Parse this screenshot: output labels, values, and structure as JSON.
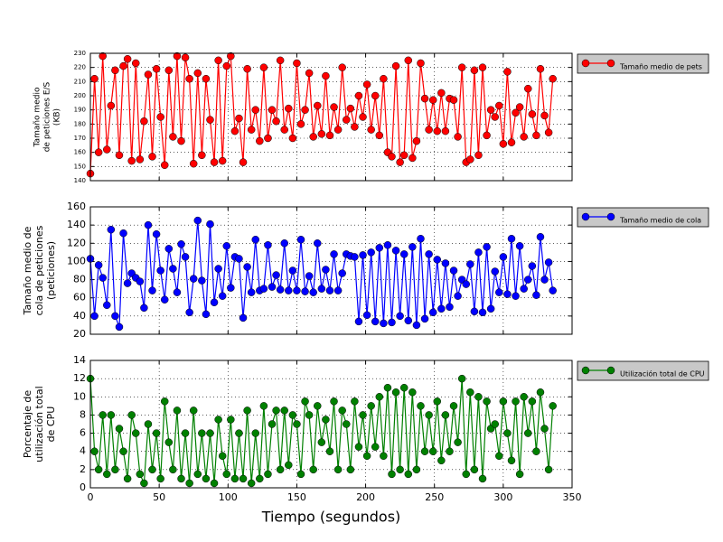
{
  "chart_data": [
    {
      "type": "line",
      "ylabel": [
        "Tamaño medio",
        "de peticiones E/S",
        "(KB)"
      ],
      "xlim": [
        0,
        350
      ],
      "ylim": [
        140,
        230
      ],
      "yticks": [
        140,
        150,
        160,
        170,
        180,
        190,
        200,
        210,
        220,
        230
      ],
      "grid": true,
      "x": [
        0,
        3,
        6,
        9,
        12,
        15,
        18,
        21,
        24,
        27,
        30,
        33,
        36,
        39,
        42,
        45,
        48,
        51,
        54,
        57,
        60,
        63,
        66,
        69,
        72,
        75,
        78,
        81,
        84,
        87,
        90,
        93,
        96,
        99,
        102,
        105,
        108,
        111,
        114,
        117,
        120,
        123,
        126,
        129,
        132,
        135,
        138,
        141,
        144,
        147,
        150,
        153,
        156,
        159,
        162,
        165,
        168,
        171,
        174,
        177,
        180,
        183,
        186,
        189,
        192,
        195,
        198,
        201,
        204,
        207,
        210,
        213,
        216,
        219,
        222,
        225,
        228,
        231,
        234,
        237,
        240,
        243,
        246,
        249,
        252,
        255,
        258,
        261,
        264,
        267,
        270,
        273,
        276,
        279,
        282,
        285,
        288,
        291,
        294,
        297,
        300,
        303,
        306,
        309,
        312,
        315,
        318,
        321,
        324,
        327,
        330,
        333,
        336
      ],
      "series": [
        {
          "name": "Tamaño medio de pets",
          "color": "#ff0000",
          "values": [
            145,
            212,
            160,
            228,
            162,
            193,
            218,
            158,
            221,
            226,
            154,
            223,
            155,
            182,
            215,
            157,
            219,
            185,
            151,
            218,
            171,
            228,
            168,
            227,
            212,
            152,
            216,
            158,
            212,
            183,
            153,
            225,
            154,
            221,
            228,
            175,
            184,
            153,
            219,
            176,
            190,
            168,
            220,
            170,
            190,
            182,
            225,
            176,
            191,
            170,
            223,
            180,
            190,
            216,
            171,
            193,
            173,
            214,
            172,
            192,
            176,
            220,
            183,
            191,
            178,
            200,
            185,
            208,
            176,
            200,
            172,
            212,
            160,
            157,
            221,
            153,
            158,
            225,
            156,
            168,
            223,
            198,
            176,
            197,
            175,
            202,
            175,
            198,
            197,
            171,
            220,
            153,
            155,
            218,
            158,
            220,
            172,
            190,
            185,
            193,
            166,
            217,
            167,
            188,
            192,
            171,
            205,
            187,
            172,
            219,
            186,
            174,
            212
          ]
        }
      ]
    },
    {
      "type": "line",
      "ylabel": [
        "Tamaño medio de",
        "cola de peticiones",
        "(peticiones)"
      ],
      "xlim": [
        0,
        350
      ],
      "ylim": [
        20,
        160
      ],
      "yticks": [
        20,
        40,
        60,
        80,
        100,
        120,
        140,
        160
      ],
      "grid": true,
      "x": [
        0,
        3,
        6,
        9,
        12,
        15,
        18,
        21,
        24,
        27,
        30,
        33,
        36,
        39,
        42,
        45,
        48,
        51,
        54,
        57,
        60,
        63,
        66,
        69,
        72,
        75,
        78,
        81,
        84,
        87,
        90,
        93,
        96,
        99,
        102,
        105,
        108,
        111,
        114,
        117,
        120,
        123,
        126,
        129,
        132,
        135,
        138,
        141,
        144,
        147,
        150,
        153,
        156,
        159,
        162,
        165,
        168,
        171,
        174,
        177,
        180,
        183,
        186,
        189,
        192,
        195,
        198,
        201,
        204,
        207,
        210,
        213,
        216,
        219,
        222,
        225,
        228,
        231,
        234,
        237,
        240,
        243,
        246,
        249,
        252,
        255,
        258,
        261,
        264,
        267,
        270,
        273,
        276,
        279,
        282,
        285,
        288,
        291,
        294,
        297,
        300,
        303,
        306,
        309,
        312,
        315,
        318,
        321,
        324,
        327,
        330,
        333,
        336
      ],
      "series": [
        {
          "name": "Tamaño medio de cola",
          "color": "#0000ff",
          "values": [
            103,
            40,
            96,
            82,
            52,
            135,
            40,
            28,
            131,
            76,
            87,
            82,
            78,
            49,
            140,
            68,
            130,
            90,
            58,
            114,
            92,
            66,
            119,
            105,
            44,
            81,
            145,
            79,
            42,
            141,
            55,
            92,
            62,
            117,
            71,
            105,
            103,
            38,
            94,
            66,
            124,
            68,
            70,
            118,
            72,
            85,
            69,
            120,
            68,
            90,
            68,
            124,
            67,
            84,
            66,
            120,
            70,
            91,
            68,
            108,
            68,
            87,
            108,
            106,
            105,
            34,
            107,
            41,
            110,
            34,
            115,
            32,
            118,
            33,
            112,
            40,
            108,
            35,
            116,
            30,
            125,
            37,
            108,
            44,
            102,
            48,
            98,
            50,
            90,
            62,
            80,
            75,
            97,
            45,
            110,
            44,
            116,
            48,
            89,
            66,
            105,
            64,
            125,
            62,
            117,
            70,
            80,
            95,
            63,
            127,
            80,
            99,
            68
          ]
        }
      ]
    },
    {
      "type": "line",
      "ylabel": [
        "Porcentaje de",
        "utilización total",
        "de CPU"
      ],
      "xlabel": "Tiempo (segundos)",
      "xlim": [
        0,
        350
      ],
      "ylim": [
        0,
        14
      ],
      "xticks": [
        0,
        50,
        100,
        150,
        200,
        250,
        300,
        350
      ],
      "yticks": [
        0,
        2,
        4,
        6,
        8,
        10,
        12,
        14
      ],
      "grid": true,
      "x": [
        0,
        3,
        6,
        9,
        12,
        15,
        18,
        21,
        24,
        27,
        30,
        33,
        36,
        39,
        42,
        45,
        48,
        51,
        54,
        57,
        60,
        63,
        66,
        69,
        72,
        75,
        78,
        81,
        84,
        87,
        90,
        93,
        96,
        99,
        102,
        105,
        108,
        111,
        114,
        117,
        120,
        123,
        126,
        129,
        132,
        135,
        138,
        141,
        144,
        147,
        150,
        153,
        156,
        159,
        162,
        165,
        168,
        171,
        174,
        177,
        180,
        183,
        186,
        189,
        192,
        195,
        198,
        201,
        204,
        207,
        210,
        213,
        216,
        219,
        222,
        225,
        228,
        231,
        234,
        237,
        240,
        243,
        246,
        249,
        252,
        255,
        258,
        261,
        264,
        267,
        270,
        273,
        276,
        279,
        282,
        285,
        288,
        291,
        294,
        297,
        300,
        303,
        306,
        309,
        312,
        315,
        318,
        321,
        324,
        327,
        330,
        333,
        336
      ],
      "series": [
        {
          "name": "Utilización total de CPU",
          "color": "#008000",
          "values": [
            12,
            4,
            2,
            8,
            1.5,
            8,
            2,
            6.5,
            4,
            1,
            8,
            6,
            1.5,
            0.5,
            7,
            2,
            6,
            1,
            9.5,
            5,
            2,
            8.5,
            1,
            6,
            0.5,
            8.5,
            1.5,
            6,
            1,
            6,
            0.5,
            7.5,
            3.5,
            1.5,
            7.5,
            1,
            6,
            1,
            8.5,
            0.5,
            6,
            1,
            9,
            1.5,
            7,
            8.5,
            2,
            8.5,
            2.5,
            8,
            7,
            1.5,
            9.5,
            8,
            2,
            9,
            5,
            7.5,
            4,
            9.5,
            2,
            8.5,
            7,
            2,
            9.5,
            4.5,
            8,
            3.5,
            9,
            4.5,
            10,
            3.5,
            11,
            1.5,
            10.5,
            2,
            11,
            1.5,
            10.5,
            2,
            9,
            4,
            8,
            4,
            9.5,
            3,
            8,
            4,
            9,
            5,
            12,
            1.5,
            10.5,
            2,
            10,
            1,
            9.5,
            6.5,
            7,
            3.5,
            9.5,
            6,
            3,
            9.5,
            1.5,
            10,
            6,
            9.5,
            4,
            10.5,
            6.5,
            2,
            9
          ]
        }
      ]
    }
  ]
}
